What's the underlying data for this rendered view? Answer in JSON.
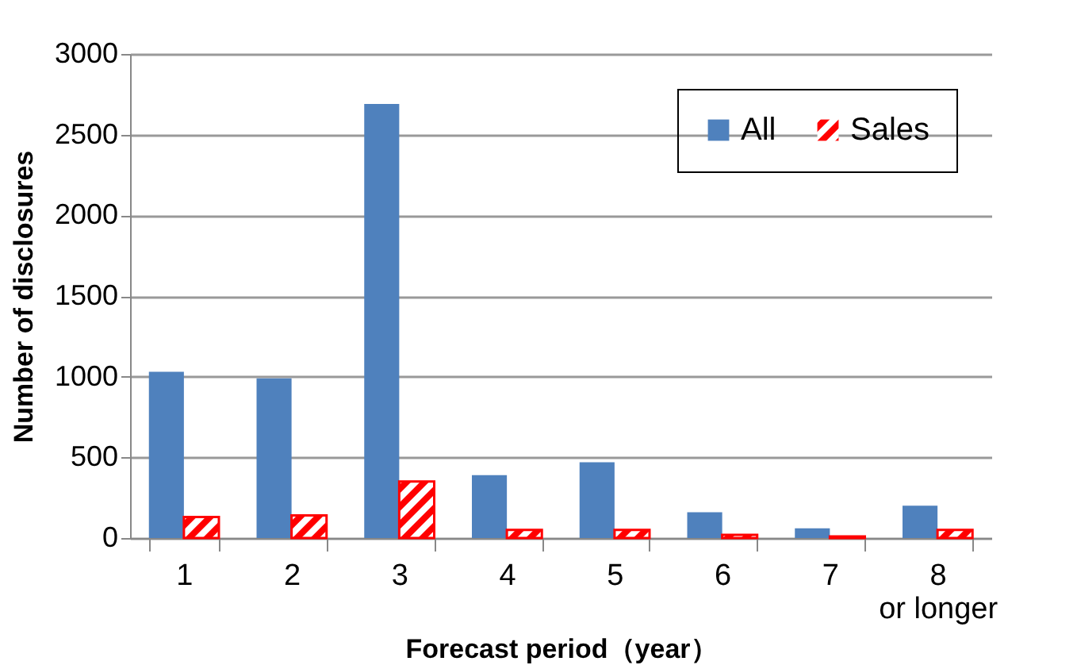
{
  "chart_data": {
    "type": "bar",
    "xlabel": "Forecast period（year）",
    "ylabel": "Number of disclosures",
    "categories": [
      "1",
      "2",
      "3",
      "4",
      "5",
      "6",
      "7",
      "8 or longer"
    ],
    "series": [
      {
        "name": "All",
        "color": "#4f81bd",
        "values": [
          1030,
          990,
          2690,
          390,
          470,
          160,
          60,
          200
        ]
      },
      {
        "name": "Sales",
        "color": "#ff0000",
        "values": [
          130,
          140,
          350,
          50,
          50,
          20,
          10,
          50
        ]
      }
    ],
    "ylim": [
      0,
      3000
    ],
    "yticks": [
      0,
      500,
      1000,
      1500,
      2000,
      2500,
      3000
    ],
    "grid": "y",
    "legend": "top right"
  }
}
